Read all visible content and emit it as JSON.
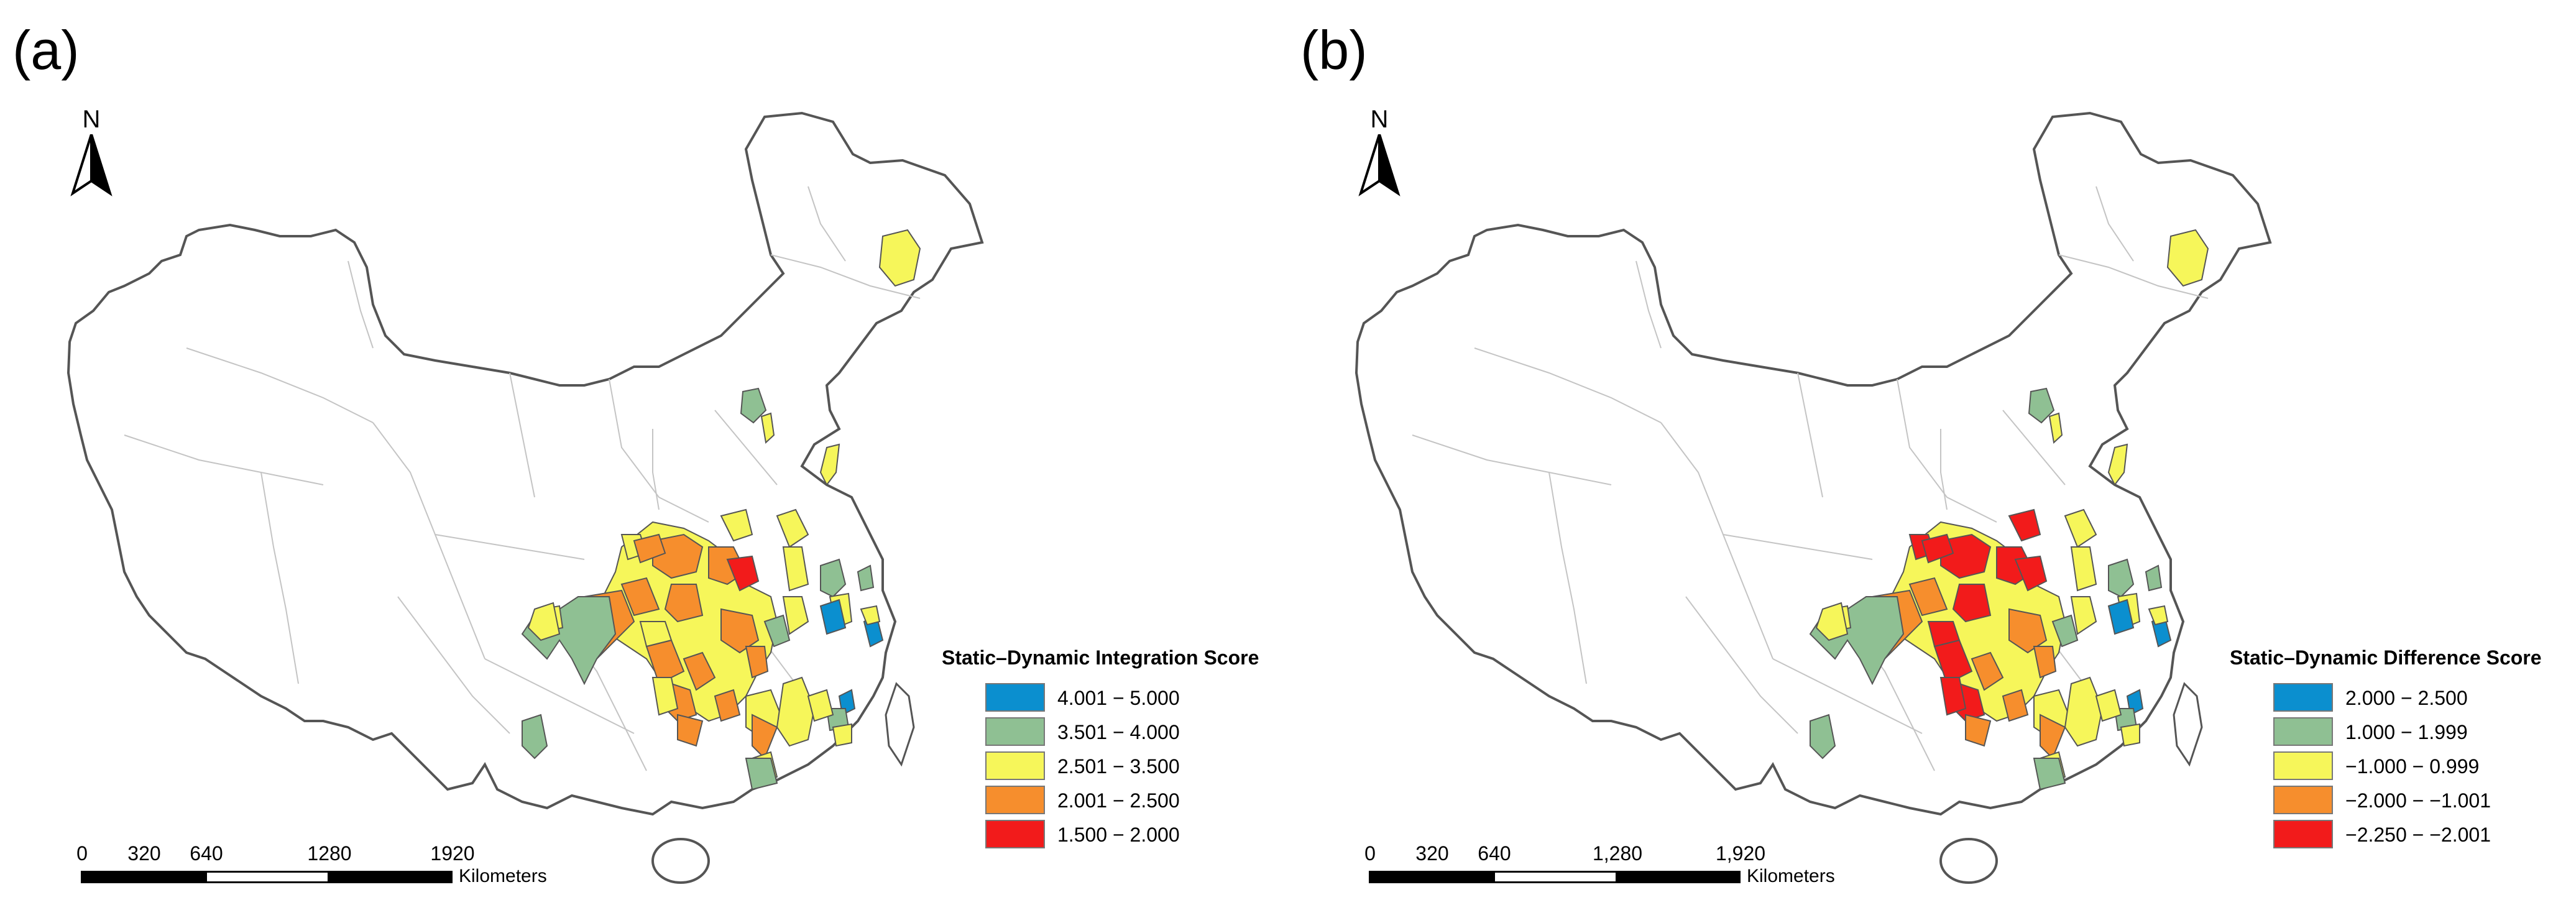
{
  "panels": [
    {
      "label": "(a)",
      "legend_title": "Static–Dynamic Integration Score",
      "classes": [
        {
          "label": "4.001 − 5.000",
          "color": "#0b8fcf"
        },
        {
          "label": "3.501 − 4.000",
          "color": "#8fc093"
        },
        {
          "label": "2.501 − 3.500",
          "color": "#f6f65a"
        },
        {
          "label": "2.001 − 2.500",
          "color": "#f68e2d"
        },
        {
          "label": "1.500 − 2.000",
          "color": "#f21b1b"
        }
      ],
      "scale_ticks": [
        "0",
        "320",
        "640",
        "1280",
        "1920"
      ],
      "scale_unit": "Kilometers"
    },
    {
      "label": "(b)",
      "legend_title": "Static–Dynamic Difference Score",
      "classes": [
        {
          "label": "2.000 − 2.500",
          "color": "#0b8fcf"
        },
        {
          "label": "1.000 − 1.999",
          "color": "#8fc093"
        },
        {
          "label": "−1.000 − 0.999",
          "color": "#f6f65a"
        },
        {
          "label": "−2.000 − −1.001",
          "color": "#f68e2d"
        },
        {
          "label": "−2.250 − −2.001",
          "color": "#f21b1b"
        }
      ],
      "scale_ticks": [
        "0",
        "320",
        "640",
        "1,280",
        "1,920"
      ],
      "scale_unit": "Kilometers"
    }
  ],
  "north_label": "N",
  "icons": {
    "north_arrow": "north-arrow-icon",
    "scale_bar": "scale-bar"
  },
  "colors": {
    "outline": "#555555",
    "internal_borders": "#bdbdbd"
  }
}
